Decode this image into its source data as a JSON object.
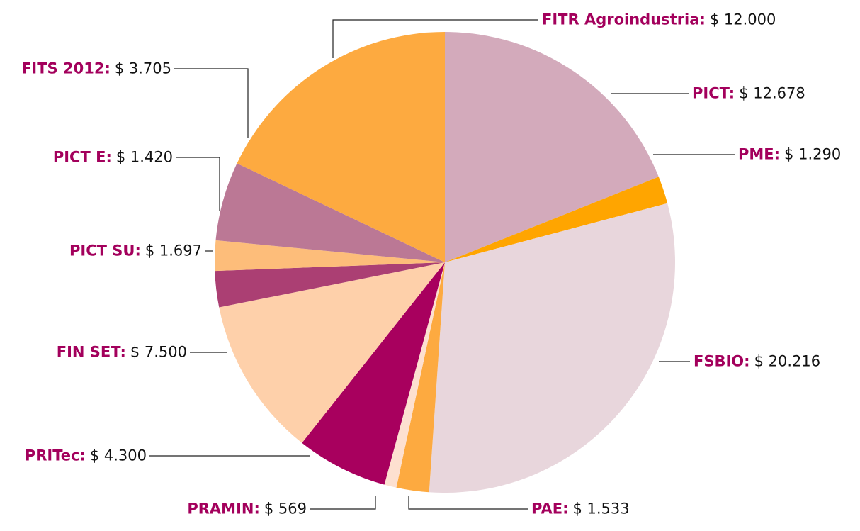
{
  "chart_data": {
    "type": "pie",
    "categories": [
      "PICT",
      "PME",
      "FSBIO",
      "PAE",
      "PRAMIN",
      "PRITec",
      "FIN SET",
      "PICT SU",
      "PICT E",
      "FITS 2012",
      "FITR Agroindustria"
    ],
    "values": [
      12678,
      1290,
      20216,
      1533,
      569,
      4300,
      7500,
      1697,
      1420,
      3705,
      12000
    ],
    "value_labels": [
      "$ 12.678",
      "$ 1.290",
      "$ 20.216",
      "$ 1.533",
      "$ 569",
      "$ 4.300",
      "$ 7.500",
      "$ 1.697",
      "$ 1.420",
      "$ 3.705",
      "$ 12.000"
    ],
    "colors": [
      "#d3aabb",
      "#ffa500",
      "#e8d6dc",
      "#fdaa40",
      "#fde0d0",
      "#a8005e",
      "#fed0aa",
      "#ab3f73",
      "#fdbd7a",
      "#bb7895",
      "#fdaa40"
    ]
  }
}
